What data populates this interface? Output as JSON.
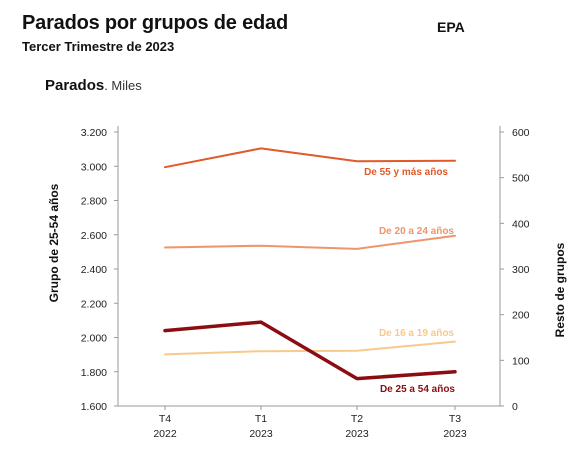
{
  "header": {
    "title": "Parados por grupos de edad",
    "subtitle": "Tercer Trimestre de 2023",
    "source": "EPA",
    "measure": "Parados",
    "unit": ". Miles"
  },
  "chart_data": {
    "type": "line",
    "title": "Parados por grupos de edad",
    "subtitle": "Tercer Trimestre de 2023",
    "categories": [
      [
        "T4",
        "2022"
      ],
      [
        "T1",
        "2023"
      ],
      [
        "T2",
        "2023"
      ],
      [
        "T3",
        "2023"
      ]
    ],
    "y_left": {
      "label": "Grupo de 25-54 años",
      "ylim": [
        1600,
        3200
      ],
      "ticks": [
        "1.600",
        "1.800",
        "2.000",
        "2.200",
        "2.400",
        "2.600",
        "2.800",
        "3.000",
        "3.200"
      ]
    },
    "y_right": {
      "label": "Resto de grupos",
      "ylim": [
        0,
        600
      ],
      "ticks": [
        "0",
        "100",
        "200",
        "300",
        "400",
        "500",
        "600"
      ]
    },
    "series": [
      {
        "name": "De 55 y más años",
        "axis": "right",
        "color": "#e05a2b",
        "width": 2,
        "values": [
          523,
          564,
          536,
          537
        ]
      },
      {
        "name": "De 20 a 24 años",
        "axis": "right",
        "color": "#f0956a",
        "width": 2,
        "values": [
          347,
          351,
          344,
          373
        ]
      },
      {
        "name": "De 16 a 19 años",
        "axis": "right",
        "color": "#f9c98a",
        "width": 2,
        "values": [
          113,
          120,
          121,
          141
        ]
      },
      {
        "name": "De 25 a 54 años",
        "axis": "left",
        "color": "#8b0d12",
        "width": 3.5,
        "values": [
          2040,
          2090,
          1760,
          1800
        ]
      }
    ],
    "grid": false,
    "legend": "inline labels"
  }
}
